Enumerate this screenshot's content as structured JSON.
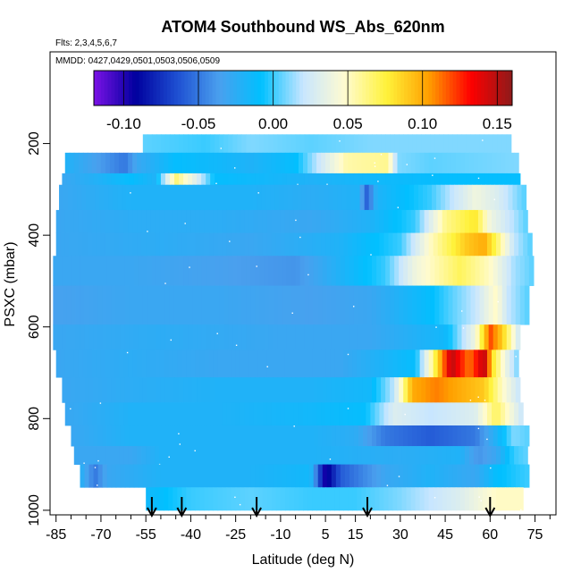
{
  "chart_data": {
    "type": "heatmap",
    "title": "ATOM4 Southbound WS_Abs_620nm",
    "subtitle_flights": "Flts: 2,3,4,5,6,7",
    "subtitle_dates": "MMDD: 0427,0429,0501,0503,0506,0509",
    "xlabel": "Latitude (deg N)",
    "ylabel": "PSXC (mbar)",
    "xlim": [
      -87,
      82
    ],
    "ylim": [
      1010,
      0
    ],
    "x_ticks": [
      -85,
      -70,
      -55,
      -40,
      -25,
      -10,
      5,
      15,
      30,
      45,
      60,
      75
    ],
    "x_tick_labels": [
      "-85",
      "-70",
      "-55",
      "-40",
      "-25",
      "-10",
      "5",
      "15",
      "30",
      "45",
      "60",
      "75"
    ],
    "x_minor_step": 5,
    "y_ticks": [
      200,
      400,
      600,
      800,
      1000
    ],
    "y_tick_labels": [
      "200",
      "400",
      "600",
      "800",
      "1000"
    ],
    "colorbar": {
      "min": -0.12,
      "max": 0.16,
      "ticks": [
        -0.1,
        -0.05,
        0.0,
        0.05,
        0.1,
        0.15
      ],
      "tick_labels": [
        "-0.10",
        "-0.05",
        "0.00",
        "0.05",
        "0.10",
        "0.15"
      ],
      "colors": [
        "#7b12e6",
        "#00009e",
        "#1e50d2",
        "#4aa0ee",
        "#00c0ff",
        "#c8e6ff",
        "#fffbd0",
        "#fff23a",
        "#ffa000",
        "#ff0000",
        "#8e1a1a"
      ]
    },
    "profile_markers": [
      -53,
      -43,
      -18,
      19,
      60
    ],
    "bands": [
      {
        "p": [
          180,
          220
        ],
        "x": [
          -56,
          67
        ],
        "v": [
          [
            -56,
            0.005
          ],
          [
            -35,
            0.0
          ],
          [
            -20,
            0.01
          ],
          [
            0,
            0.005
          ],
          [
            20,
            0.01
          ],
          [
            67,
            0.01
          ]
        ]
      },
      {
        "p": [
          220,
          265
        ],
        "x": [
          -82,
          69
        ],
        "v": [
          [
            -82,
            -0.02
          ],
          [
            -75,
            -0.03
          ],
          [
            -62,
            -0.05
          ],
          [
            -58,
            -0.03
          ],
          [
            -45,
            -0.01
          ],
          [
            -30,
            -0.015
          ],
          [
            -20,
            -0.02
          ],
          [
            -5,
            -0.01
          ],
          [
            5,
            0.03
          ],
          [
            12,
            0.055
          ],
          [
            26,
            0.06
          ],
          [
            29,
            0.01
          ],
          [
            40,
            0.005
          ],
          [
            69,
            0.01
          ]
        ]
      },
      {
        "p": [
          265,
          290
        ],
        "x": [
          -83,
          70
        ],
        "v": [
          [
            -83,
            -0.03
          ],
          [
            -70,
            -0.02
          ],
          [
            -60,
            -0.01
          ],
          [
            -52,
            -0.02
          ],
          [
            -45,
            0.065
          ],
          [
            -38,
            0.03
          ],
          [
            -32,
            -0.01
          ],
          [
            0,
            -0.02
          ],
          [
            20,
            -0.015
          ],
          [
            45,
            -0.01
          ],
          [
            70,
            -0.01
          ]
        ]
      },
      {
        "p": [
          290,
          345
        ],
        "x": [
          -84,
          71
        ],
        "v": [
          [
            -84,
            -0.03
          ],
          [
            -60,
            -0.02
          ],
          [
            -20,
            -0.02
          ],
          [
            0,
            -0.025
          ],
          [
            16,
            -0.02
          ],
          [
            19,
            -0.06
          ],
          [
            22,
            -0.02
          ],
          [
            40,
            0.0
          ],
          [
            55,
            0.04
          ],
          [
            62,
            0.03
          ],
          [
            71,
            0.005
          ]
        ]
      },
      {
        "p": [
          345,
          395
        ],
        "x": [
          -85,
          72
        ],
        "v": [
          [
            -85,
            -0.03
          ],
          [
            -60,
            -0.025
          ],
          [
            -30,
            -0.025
          ],
          [
            0,
            -0.03
          ],
          [
            20,
            -0.02
          ],
          [
            35,
            0.0
          ],
          [
            45,
            0.06
          ],
          [
            55,
            0.08
          ],
          [
            60,
            0.04
          ],
          [
            72,
            0.005
          ]
        ]
      },
      {
        "p": [
          395,
          445
        ],
        "x": [
          -85,
          73
        ],
        "v": [
          [
            -85,
            -0.03
          ],
          [
            -50,
            -0.025
          ],
          [
            -20,
            -0.03
          ],
          [
            10,
            -0.02
          ],
          [
            30,
            0.0
          ],
          [
            40,
            0.05
          ],
          [
            52,
            0.09
          ],
          [
            58,
            0.1
          ],
          [
            62,
            0.07
          ],
          [
            68,
            0.02
          ],
          [
            73,
            0.005
          ]
        ]
      },
      {
        "p": [
          445,
          510
        ],
        "x": [
          -86,
          74
        ],
        "v": [
          [
            -86,
            -0.03
          ],
          [
            -60,
            -0.03
          ],
          [
            -30,
            -0.035
          ],
          [
            -5,
            -0.04
          ],
          [
            10,
            -0.02
          ],
          [
            25,
            0.0
          ],
          [
            35,
            0.04
          ],
          [
            50,
            0.07
          ],
          [
            60,
            0.05
          ],
          [
            68,
            0.015
          ],
          [
            74,
            0.005
          ]
        ]
      },
      {
        "p": [
          510,
          595
        ],
        "x": [
          -86,
          72
        ],
        "v": [
          [
            -86,
            -0.035
          ],
          [
            -60,
            -0.03
          ],
          [
            -30,
            -0.03
          ],
          [
            0,
            -0.035
          ],
          [
            20,
            -0.03
          ],
          [
            40,
            -0.01
          ],
          [
            55,
            0.02
          ],
          [
            62,
            0.05
          ],
          [
            66,
            0.02
          ],
          [
            72,
            0.005
          ]
        ]
      },
      {
        "p": [
          595,
          650
        ],
        "x": [
          -86,
          70
        ],
        "v": [
          [
            -86,
            -0.03
          ],
          [
            -50,
            -0.025
          ],
          [
            -10,
            -0.03
          ],
          [
            20,
            -0.03
          ],
          [
            45,
            -0.015
          ],
          [
            55,
            0.04
          ],
          [
            60,
            0.12
          ],
          [
            64,
            0.09
          ],
          [
            70,
            0.02
          ]
        ]
      },
      {
        "p": [
          650,
          710
        ],
        "x": [
          -85,
          69
        ],
        "v": [
          [
            -85,
            -0.03
          ],
          [
            -60,
            -0.025
          ],
          [
            -30,
            -0.03
          ],
          [
            10,
            -0.03
          ],
          [
            35,
            -0.01
          ],
          [
            40,
            0.05
          ],
          [
            47,
            0.15
          ],
          [
            53,
            0.11
          ],
          [
            58,
            0.15
          ],
          [
            61,
            0.08
          ],
          [
            65,
            0.04
          ],
          [
            69,
            0.01
          ]
        ]
      },
      {
        "p": [
          710,
          765
        ],
        "x": [
          -83,
          70
        ],
        "v": [
          [
            -83,
            -0.03
          ],
          [
            -60,
            -0.025
          ],
          [
            -30,
            -0.02
          ],
          [
            0,
            -0.02
          ],
          [
            20,
            -0.015
          ],
          [
            28,
            0.02
          ],
          [
            34,
            0.1
          ],
          [
            42,
            0.11
          ],
          [
            50,
            0.1
          ],
          [
            58,
            0.09
          ],
          [
            64,
            0.05
          ],
          [
            70,
            0.02
          ]
        ]
      },
      {
        "p": [
          765,
          815
        ],
        "x": [
          -82,
          71
        ],
        "v": [
          [
            -82,
            -0.03
          ],
          [
            -60,
            -0.02
          ],
          [
            -30,
            -0.02
          ],
          [
            0,
            -0.015
          ],
          [
            18,
            -0.01
          ],
          [
            28,
            0.03
          ],
          [
            40,
            0.02
          ],
          [
            55,
            0.03
          ],
          [
            62,
            0.07
          ],
          [
            71,
            0.02
          ]
        ]
      },
      {
        "p": [
          815,
          860
        ],
        "x": [
          -80,
          72
        ],
        "v": [
          [
            -80,
            -0.03
          ],
          [
            -60,
            -0.02
          ],
          [
            -30,
            -0.02
          ],
          [
            0,
            -0.02
          ],
          [
            15,
            -0.025
          ],
          [
            25,
            -0.05
          ],
          [
            40,
            -0.06
          ],
          [
            55,
            -0.05
          ],
          [
            62,
            -0.02
          ],
          [
            68,
            0.01
          ],
          [
            72,
            0.005
          ]
        ]
      },
      {
        "p": [
          860,
          900
        ],
        "x": [
          -79,
          72
        ],
        "v": [
          [
            -79,
            -0.03
          ],
          [
            -60,
            -0.03
          ],
          [
            -50,
            -0.02
          ],
          [
            -30,
            -0.02
          ],
          [
            0,
            -0.02
          ],
          [
            30,
            -0.025
          ],
          [
            50,
            -0.02
          ],
          [
            56,
            -0.04
          ],
          [
            62,
            -0.03
          ],
          [
            68,
            0.0
          ],
          [
            72,
            0.005
          ]
        ]
      },
      {
        "p": [
          900,
          950
        ],
        "x": [
          -77,
          72
        ],
        "v": [
          [
            -77,
            -0.02
          ],
          [
            -72,
            -0.05
          ],
          [
            -68,
            -0.03
          ],
          [
            -50,
            -0.02
          ],
          [
            -20,
            -0.02
          ],
          [
            0,
            -0.015
          ],
          [
            5,
            -0.1
          ],
          [
            10,
            -0.06
          ],
          [
            25,
            -0.03
          ],
          [
            40,
            -0.02
          ],
          [
            55,
            -0.03
          ],
          [
            62,
            -0.01
          ],
          [
            72,
            0.0
          ]
        ]
      },
      {
        "p": [
          950,
          1000
        ],
        "x": [
          -55,
          71
        ],
        "v": [
          [
            -55,
            -0.015
          ],
          [
            -40,
            0.0
          ],
          [
            -20,
            0.005
          ],
          [
            0,
            0.0
          ],
          [
            15,
            0.0
          ],
          [
            30,
            0.01
          ],
          [
            50,
            0.03
          ],
          [
            62,
            0.05
          ],
          [
            71,
            0.05
          ]
        ]
      }
    ],
    "speckle_seed": 7
  }
}
